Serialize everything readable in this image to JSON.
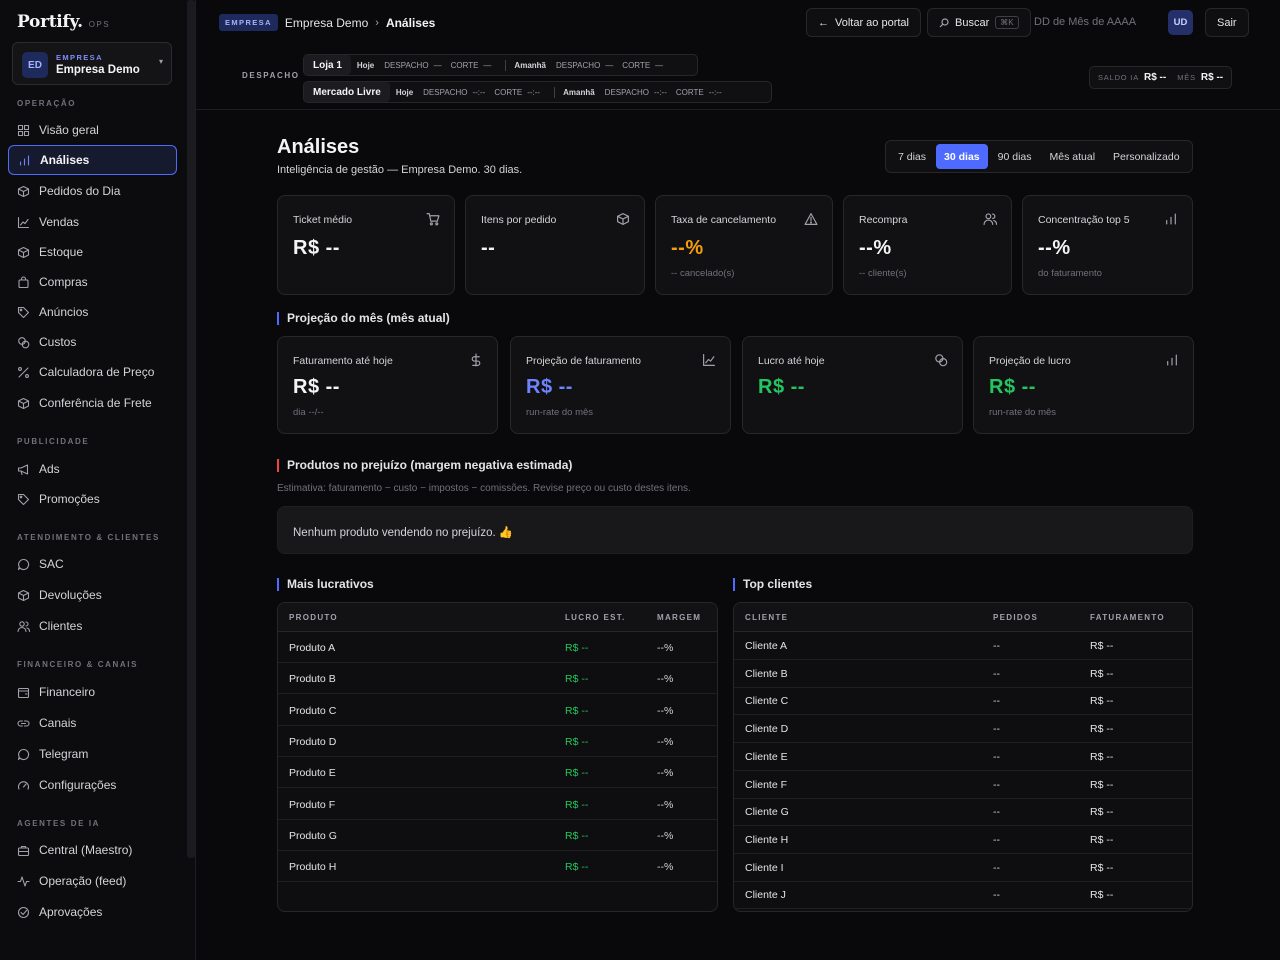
{
  "brand": {
    "name": "Portify.",
    "tag": "OPS"
  },
  "company": {
    "initials": "ED",
    "label": "EMPRESA",
    "name": "Empresa Demo"
  },
  "sidebar": {
    "sections": [
      {
        "title": "OPERAÇÃO",
        "items": [
          {
            "label": "Visão geral",
            "icon": "grid-icon"
          },
          {
            "label": "Análises",
            "icon": "bar-chart-icon",
            "active": true
          },
          {
            "label": "Pedidos do Dia",
            "icon": "box-icon"
          },
          {
            "label": "Vendas",
            "icon": "line-chart-icon"
          },
          {
            "label": "Estoque",
            "icon": "box-icon"
          },
          {
            "label": "Compras",
            "icon": "bag-icon"
          },
          {
            "label": "Anúncios",
            "icon": "tag-icon"
          },
          {
            "label": "Custos",
            "icon": "coins-icon"
          },
          {
            "label": "Calculadora de Preço",
            "icon": "percent-icon"
          },
          {
            "label": "Conferência de Frete",
            "icon": "box-icon"
          }
        ]
      },
      {
        "title": "PUBLICIDADE",
        "items": [
          {
            "label": "Ads",
            "icon": "megaphone-icon"
          },
          {
            "label": "Promoções",
            "icon": "tag-icon"
          }
        ]
      },
      {
        "title": "ATENDIMENTO & CLIENTES",
        "items": [
          {
            "label": "SAC",
            "icon": "chat-icon"
          },
          {
            "label": "Devoluções",
            "icon": "box-icon"
          },
          {
            "label": "Clientes",
            "icon": "users-icon"
          }
        ]
      },
      {
        "title": "FINANCEIRO & CANAIS",
        "items": [
          {
            "label": "Financeiro",
            "icon": "wallet-icon"
          },
          {
            "label": "Canais",
            "icon": "link-icon"
          },
          {
            "label": "Telegram",
            "icon": "chat-icon"
          },
          {
            "label": "Configurações",
            "icon": "gauge-icon"
          }
        ]
      },
      {
        "title": "AGENTES DE IA",
        "items": [
          {
            "label": "Central (Maestro)",
            "icon": "briefcase-icon"
          },
          {
            "label": "Operação (feed)",
            "icon": "activity-icon"
          },
          {
            "label": "Aprovações",
            "icon": "check-circle-icon"
          }
        ]
      }
    ]
  },
  "header": {
    "tag": "EMPRESA",
    "company": "Empresa Demo",
    "current": "Análises",
    "back_label": "Voltar ao portal",
    "search_label": "Buscar",
    "search_kbd": "⌘K",
    "date": "DD de Mês de AAAA",
    "user_initials": "UD",
    "logout_label": "Sair"
  },
  "dispatch": {
    "label": "DESPACHO",
    "stores": [
      {
        "name": "Loja 1",
        "today_label": "Hoje",
        "today_dispatch": "—",
        "today_cut": "—",
        "tomorrow_label": "Amanhã",
        "tomorrow_dispatch": "—",
        "tomorrow_cut": "—"
      },
      {
        "name": "Mercado Livre",
        "today_label": "Hoje",
        "today_dispatch": "--:--",
        "today_cut": "--:--",
        "tomorrow_label": "Amanhã",
        "tomorrow_dispatch": "--:--",
        "tomorrow_cut": "--:--"
      }
    ],
    "dispatch_word": "DESPACHO",
    "cut_word": "CORTE",
    "saldo_label": "SALDO IA",
    "saldo_value": "R$ --",
    "month_label": "MÊS",
    "month_value": "R$ --"
  },
  "page": {
    "title": "Análises",
    "subtitle": "Inteligência de gestão — Empresa Demo. 30 dias.",
    "ranges": [
      "7 dias",
      "30 dias",
      "90 dias",
      "Mês atual",
      "Personalizado"
    ],
    "active_range": "30 dias"
  },
  "kpis": [
    {
      "label": "Ticket médio",
      "value": "R$ --",
      "sub": "",
      "icon": "cart-icon",
      "color": "white"
    },
    {
      "label": "Itens por pedido",
      "value": "--",
      "sub": "",
      "icon": "box-icon",
      "color": "white"
    },
    {
      "label": "Taxa de cancelamento",
      "value": "--%",
      "sub": "-- cancelado(s)",
      "icon": "warning-icon",
      "color": "orange"
    },
    {
      "label": "Recompra",
      "value": "--%",
      "sub": "-- cliente(s)",
      "icon": "users-icon",
      "color": "white"
    },
    {
      "label": "Concentração top 5",
      "value": "--%",
      "sub": "do faturamento",
      "icon": "bar-chart-icon",
      "color": "white"
    }
  ],
  "projection": {
    "title": "Projeção do mês (mês atual)",
    "cards": [
      {
        "label": "Faturamento até hoje",
        "value": "R$ --",
        "sub": "dia --/--",
        "icon": "dollar-icon",
        "color": "white"
      },
      {
        "label": "Projeção de faturamento",
        "value": "R$ --",
        "sub": "run-rate do mês",
        "icon": "line-chart-icon",
        "color": "blue"
      },
      {
        "label": "Lucro até hoje",
        "value": "R$ --",
        "sub": "",
        "icon": "coins-icon",
        "color": "green"
      },
      {
        "label": "Projeção de lucro",
        "value": "R$ --",
        "sub": "run-rate do mês",
        "icon": "bar-chart-icon",
        "color": "green"
      }
    ]
  },
  "loss": {
    "title": "Produtos no prejuízo (margem negativa estimada)",
    "note": "Estimativa: faturamento − custo − impostos − comissões. Revise preço ou custo destes itens.",
    "empty": "Nenhum produto vendendo no prejuízo. 👍"
  },
  "profitable": {
    "title": "Mais lucrativos",
    "columns": [
      "PRODUTO",
      "LUCRO EST.",
      "MARGEM"
    ],
    "rows": [
      {
        "product": "Produto A",
        "profit": "R$ --",
        "margin": "--%"
      },
      {
        "product": "Produto B",
        "profit": "R$ --",
        "margin": "--%"
      },
      {
        "product": "Produto C",
        "profit": "R$ --",
        "margin": "--%"
      },
      {
        "product": "Produto D",
        "profit": "R$ --",
        "margin": "--%"
      },
      {
        "product": "Produto E",
        "profit": "R$ --",
        "margin": "--%"
      },
      {
        "product": "Produto F",
        "profit": "R$ --",
        "margin": "--%"
      },
      {
        "product": "Produto G",
        "profit": "R$ --",
        "margin": "--%"
      },
      {
        "product": "Produto H",
        "profit": "R$ --",
        "margin": "--%"
      }
    ]
  },
  "top_clients": {
    "title": "Top clientes",
    "columns": [
      "CLIENTE",
      "PEDIDOS",
      "FATURAMENTO"
    ],
    "rows": [
      {
        "client": "Cliente A",
        "orders": "--",
        "revenue": "R$ --"
      },
      {
        "client": "Cliente B",
        "orders": "--",
        "revenue": "R$ --"
      },
      {
        "client": "Cliente C",
        "orders": "--",
        "revenue": "R$ --"
      },
      {
        "client": "Cliente D",
        "orders": "--",
        "revenue": "R$ --"
      },
      {
        "client": "Cliente E",
        "orders": "--",
        "revenue": "R$ --"
      },
      {
        "client": "Cliente F",
        "orders": "--",
        "revenue": "R$ --"
      },
      {
        "client": "Cliente G",
        "orders": "--",
        "revenue": "R$ --"
      },
      {
        "client": "Cliente H",
        "orders": "--",
        "revenue": "R$ --"
      },
      {
        "client": "Cliente I",
        "orders": "--",
        "revenue": "R$ --"
      },
      {
        "client": "Cliente J",
        "orders": "--",
        "revenue": "R$ --"
      }
    ]
  },
  "colors": {
    "accent": "#4f6bff",
    "green": "#22c55e",
    "orange": "#f59e0b",
    "red": "#ef4444"
  }
}
